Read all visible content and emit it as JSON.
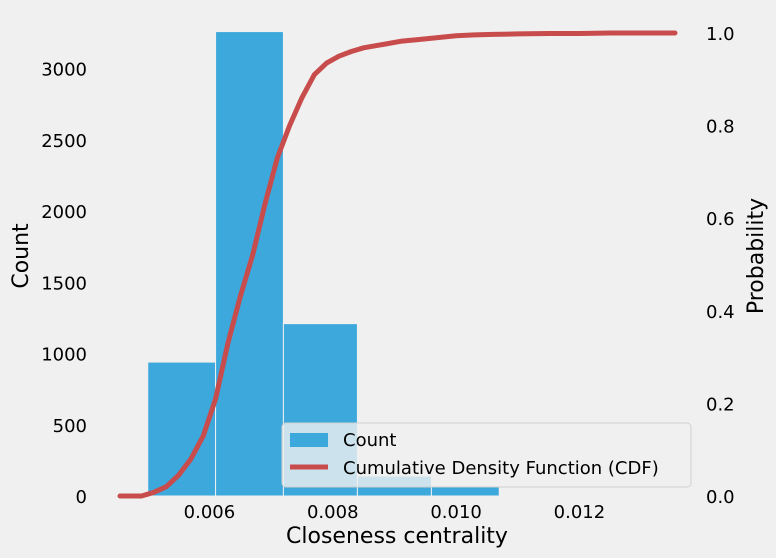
{
  "chart_data": {
    "type": "bar",
    "title": "",
    "xlabel": "Closeness centrality",
    "ylabel": "Count",
    "y2label": "Probability",
    "xlim": [
      0.00455,
      0.01355
    ],
    "ylim": [
      0,
      3250
    ],
    "y2lim": [
      0,
      1.0
    ],
    "x_ticks": [
      0.006,
      0.008,
      0.01,
      0.012
    ],
    "x_tick_labels": [
      "0.006",
      "0.008",
      "0.010",
      "0.012"
    ],
    "y_ticks": [
      0,
      500,
      1000,
      1500,
      2000,
      2500,
      3000
    ],
    "y_tick_labels": [
      "0",
      "500",
      "1000",
      "1500",
      "2000",
      "2500",
      "3000"
    ],
    "y2_ticks": [
      0,
      0.2,
      0.4,
      0.6,
      0.8,
      1.0
    ],
    "y2_tick_labels": [
      "0.0",
      "0.2",
      "0.4",
      "0.6",
      "0.8",
      "1.0"
    ],
    "grid": false,
    "legend_position": "lower-right",
    "histogram": {
      "name": "Count",
      "color": "#3ca8dc",
      "bins": [
        {
          "x0": 0.005,
          "x1": 0.0061,
          "count": 940
        },
        {
          "x0": 0.0061,
          "x1": 0.0072,
          "count": 3260
        },
        {
          "x0": 0.0072,
          "x1": 0.0084,
          "count": 1210
        },
        {
          "x0": 0.0084,
          "x1": 0.0096,
          "count": 140
        },
        {
          "x0": 0.0096,
          "x1": 0.0107,
          "count": 65
        }
      ]
    },
    "cdf": {
      "name": "Cumulative Density Function (CDF)",
      "color": "#c84c4c",
      "x": [
        0.00455,
        0.0049,
        0.0051,
        0.0053,
        0.0055,
        0.0057,
        0.0059,
        0.0061,
        0.0063,
        0.0065,
        0.0067,
        0.0069,
        0.0071,
        0.0073,
        0.0075,
        0.0077,
        0.0079,
        0.0081,
        0.0083,
        0.0085,
        0.0088,
        0.0091,
        0.0094,
        0.0097,
        0.01,
        0.0103,
        0.0106,
        0.011,
        0.0115,
        0.012,
        0.0125,
        0.013,
        0.01355
      ],
      "y": [
        0.0,
        0.0,
        0.008,
        0.02,
        0.045,
        0.08,
        0.13,
        0.21,
        0.33,
        0.43,
        0.52,
        0.63,
        0.73,
        0.8,
        0.86,
        0.91,
        0.935,
        0.95,
        0.96,
        0.968,
        0.975,
        0.982,
        0.986,
        0.99,
        0.994,
        0.996,
        0.997,
        0.998,
        0.999,
        0.999,
        1.0,
        1.0,
        1.0
      ]
    }
  }
}
